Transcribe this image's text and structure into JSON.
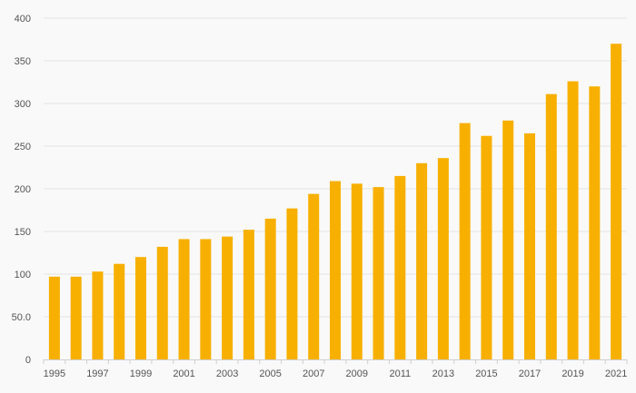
{
  "chart_data": {
    "type": "bar",
    "categories": [
      "1995",
      "1996",
      "1997",
      "1998",
      "1999",
      "2000",
      "2001",
      "2002",
      "2003",
      "2004",
      "2005",
      "2006",
      "2007",
      "2008",
      "2009",
      "2010",
      "2011",
      "2012",
      "2013",
      "2014",
      "2015",
      "2016",
      "2017",
      "2018",
      "2019",
      "2020",
      "2021"
    ],
    "values": [
      97,
      97,
      103,
      112,
      120,
      132,
      141,
      141,
      144,
      152,
      165,
      177,
      194,
      209,
      206,
      202,
      215,
      230,
      236,
      277,
      262,
      280,
      265,
      311,
      326,
      320,
      370
    ],
    "x_tick_labels": [
      "1995",
      "1997",
      "1999",
      "2001",
      "2003",
      "2005",
      "2007",
      "2009",
      "2011",
      "2013",
      "2015",
      "2017",
      "2019",
      "2021"
    ],
    "y_ticks": [
      0,
      50,
      100,
      150,
      200,
      250,
      300,
      350,
      400
    ],
    "y_tick_labels": [
      "0",
      "50.0",
      "100",
      "150",
      "200",
      "250",
      "300",
      "350",
      "400"
    ],
    "ylim": [
      0,
      400
    ],
    "title": "",
    "xlabel": "",
    "ylabel": "",
    "grid": true,
    "legend": "none",
    "bar_color": "#f7b000",
    "background_color": "#f9f9f9"
  }
}
